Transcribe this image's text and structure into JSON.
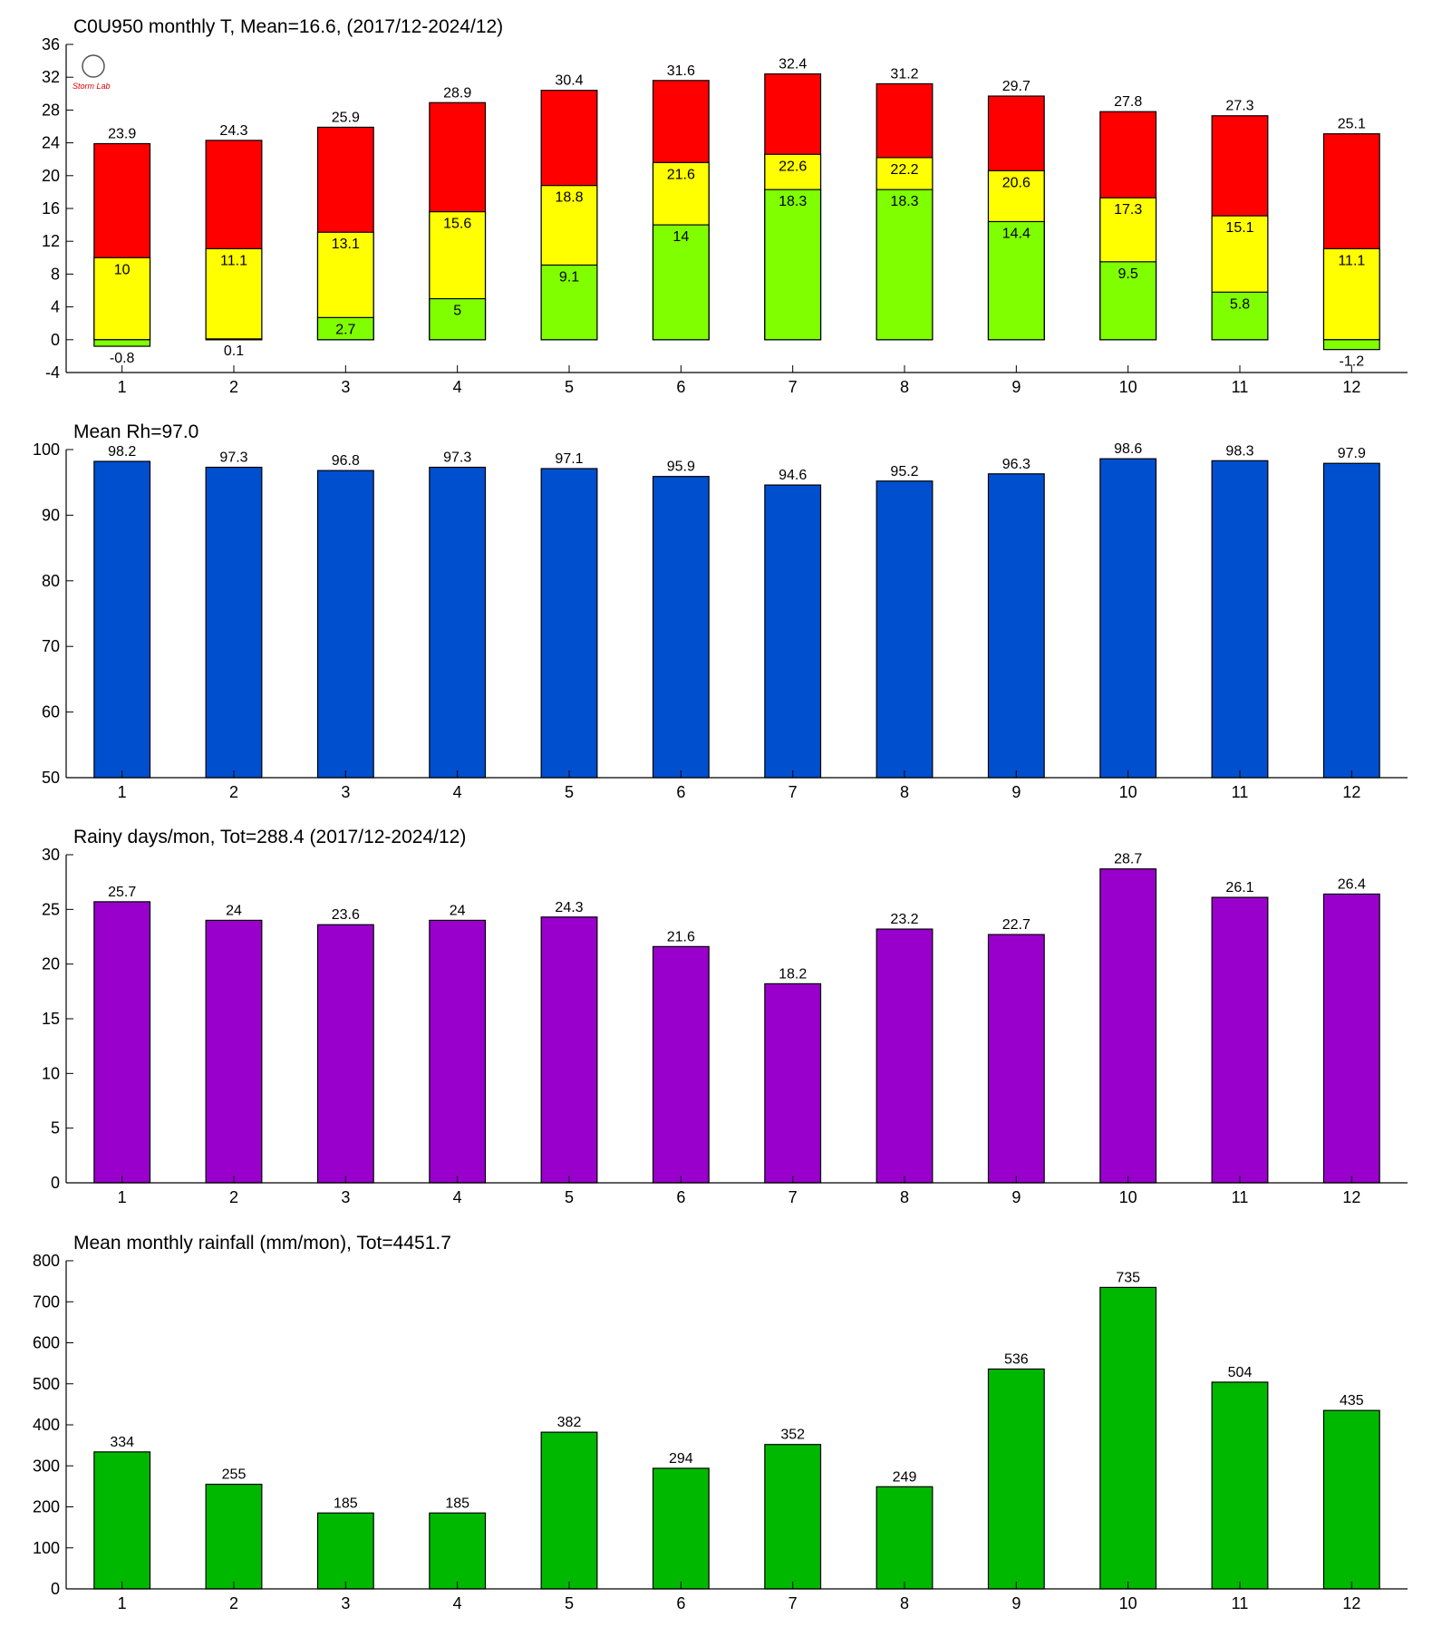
{
  "chart_data": [
    {
      "type": "overlapped_bar",
      "title": "C0U950 monthly T, Mean=16.6, (2017/12-2024/12)",
      "categories": [
        "1",
        "2",
        "3",
        "4",
        "5",
        "6",
        "7",
        "8",
        "9",
        "10",
        "11",
        "12"
      ],
      "series": [
        {
          "color": "#ff0000",
          "values": [
            23.9,
            24.3,
            25.9,
            28.9,
            30.4,
            31.6,
            32.4,
            31.2,
            29.7,
            27.8,
            27.3,
            25.1
          ]
        },
        {
          "color": "#ffff00",
          "values": [
            10,
            11.1,
            13.1,
            15.6,
            18.8,
            21.6,
            22.6,
            22.2,
            20.6,
            17.3,
            15.1,
            11.1
          ]
        },
        {
          "color": "#80ff00",
          "values": [
            -0.8,
            0.1,
            2.7,
            5,
            9.1,
            14,
            18.3,
            18.3,
            14.4,
            9.5,
            5.8,
            -1.2
          ]
        }
      ],
      "ylim": [
        -4,
        36
      ],
      "yticks": [
        -4,
        0,
        4,
        8,
        12,
        16,
        20,
        24,
        28,
        32,
        36
      ]
    },
    {
      "type": "bar",
      "title": "Mean Rh=97.0",
      "categories": [
        "1",
        "2",
        "3",
        "4",
        "5",
        "6",
        "7",
        "8",
        "9",
        "10",
        "11",
        "12"
      ],
      "values": [
        98.2,
        97.3,
        96.8,
        97.3,
        97.1,
        95.9,
        94.6,
        95.2,
        96.3,
        98.6,
        98.3,
        97.9
      ],
      "color": "#004fcf",
      "ylim": [
        50,
        100
      ],
      "yticks": [
        50,
        60,
        70,
        80,
        90,
        100
      ]
    },
    {
      "type": "bar",
      "title": "Rainy days/mon, Tot=288.4 (2017/12-2024/12)",
      "categories": [
        "1",
        "2",
        "3",
        "4",
        "5",
        "6",
        "7",
        "8",
        "9",
        "10",
        "11",
        "12"
      ],
      "values": [
        25.7,
        24,
        23.6,
        24,
        24.3,
        21.6,
        18.2,
        23.2,
        22.7,
        28.7,
        26.1,
        26.4
      ],
      "color": "#9900cc",
      "ylim": [
        0,
        30
      ],
      "yticks": [
        0,
        5,
        10,
        15,
        20,
        25,
        30
      ]
    },
    {
      "type": "bar",
      "title": "Mean monthly rainfall (mm/mon), Tot=4451.7",
      "categories": [
        "1",
        "2",
        "3",
        "4",
        "5",
        "6",
        "7",
        "8",
        "9",
        "10",
        "11",
        "12"
      ],
      "values": [
        334,
        255,
        185,
        185,
        382,
        294,
        352,
        249,
        536,
        735,
        504,
        435
      ],
      "color": "#00b800",
      "ylim": [
        0,
        800
      ],
      "yticks": [
        0,
        100,
        200,
        300,
        400,
        500,
        600,
        700,
        800
      ]
    }
  ]
}
